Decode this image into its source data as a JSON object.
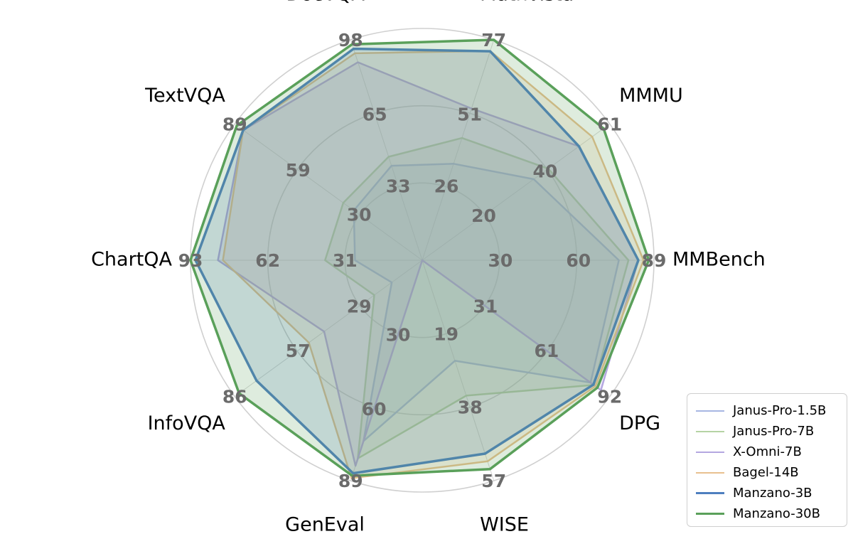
{
  "chart_data": {
    "type": "radar",
    "title": "",
    "axes": [
      {
        "label": "MMBench",
        "max": 89,
        "ticks": [
          {
            "label": "30",
            "value": 30
          },
          {
            "label": "60",
            "value": 60
          },
          {
            "label": "89",
            "value": 89
          }
        ]
      },
      {
        "label": "MMMU",
        "max": 61,
        "ticks": [
          {
            "label": "20",
            "value": 20
          },
          {
            "label": "40",
            "value": 40
          },
          {
            "label": "61",
            "value": 61
          }
        ]
      },
      {
        "label": "Mathvista",
        "max": 77,
        "ticks": [
          {
            "label": "26",
            "value": 26
          },
          {
            "label": "51",
            "value": 51
          },
          {
            "label": "77",
            "value": 77
          }
        ]
      },
      {
        "label": "DocVQA",
        "max": 98,
        "ticks": [
          {
            "label": "33",
            "value": 33
          },
          {
            "label": "65",
            "value": 65
          },
          {
            "label": "98",
            "value": 98
          }
        ]
      },
      {
        "label": "TextVQA",
        "max": 89,
        "ticks": [
          {
            "label": "30",
            "value": 30
          },
          {
            "label": "59",
            "value": 59
          },
          {
            "label": "89",
            "value": 89
          }
        ]
      },
      {
        "label": "ChartQA",
        "max": 93,
        "ticks": [
          {
            "label": "31",
            "value": 31
          },
          {
            "label": "62",
            "value": 62
          },
          {
            "label": "93",
            "value": 93
          }
        ]
      },
      {
        "label": "InfoVQA",
        "max": 86,
        "ticks": [
          {
            "label": "29",
            "value": 29
          },
          {
            "label": "57",
            "value": 57
          },
          {
            "label": "86",
            "value": 86
          }
        ]
      },
      {
        "label": "GenEval",
        "max": 89,
        "ticks": [
          {
            "label": "30",
            "value": 30
          },
          {
            "label": "60",
            "value": 60
          },
          {
            "label": "89",
            "value": 89
          }
        ]
      },
      {
        "label": "WISE",
        "max": 57,
        "ticks": [
          {
            "label": "19",
            "value": 19
          },
          {
            "label": "38",
            "value": 38
          },
          {
            "label": "57",
            "value": 57
          }
        ]
      },
      {
        "label": "DPG",
        "max": 92,
        "ticks": [
          {
            "label": "31",
            "value": 31
          },
          {
            "label": "61",
            "value": 61
          },
          {
            "label": "92",
            "value": 92
          }
        ]
      }
    ],
    "series": [
      {
        "name": "Janus-Pro-1.5B",
        "color": "#a7b6e3",
        "line_width": 2.5,
        "values": [
          75.5,
          36.3,
          33.7,
          42.0,
          32.5,
          27.0,
          14.0,
          73.0,
          26.0,
          82.6
        ]
      },
      {
        "name": "Janus-Pro-7B",
        "color": "#b5d3a4",
        "line_width": 2.5,
        "values": [
          79.2,
          41.0,
          42.7,
          46.0,
          37.5,
          39.0,
          22.0,
          80.0,
          35.0,
          84.2
        ]
      },
      {
        "name": "X-Omni-7B",
        "color": "#b4a7e0",
        "line_width": 2.5,
        "values": [
          83.0,
          51.0,
          53.0,
          88.0,
          85.0,
          82.0,
          45.0,
          83.0,
          0.0,
          87.7
        ]
      },
      {
        "name": "Bagel-14B",
        "color": "#e8c08f",
        "line_width": 2.5,
        "values": [
          85.0,
          55.3,
          73.1,
          92.0,
          85.0,
          80.0,
          52.0,
          88.0,
          52.0,
          85.0
        ]
      },
      {
        "name": "Manzano-3B",
        "color": "#4e7fbf",
        "line_width": 3.5,
        "values": [
          83.0,
          51.0,
          73.0,
          94.0,
          85.0,
          91.0,
          76.0,
          86.0,
          50.0,
          84.0
        ]
      },
      {
        "name": "Manzano-30B",
        "color": "#5aa05a",
        "line_width": 3.5,
        "values": [
          87.0,
          59.0,
          77.0,
          96.0,
          88.0,
          93.0,
          84.0,
          87.0,
          54.0,
          86.0
        ]
      }
    ],
    "legend_position": "bottom-right",
    "grid": true
  }
}
